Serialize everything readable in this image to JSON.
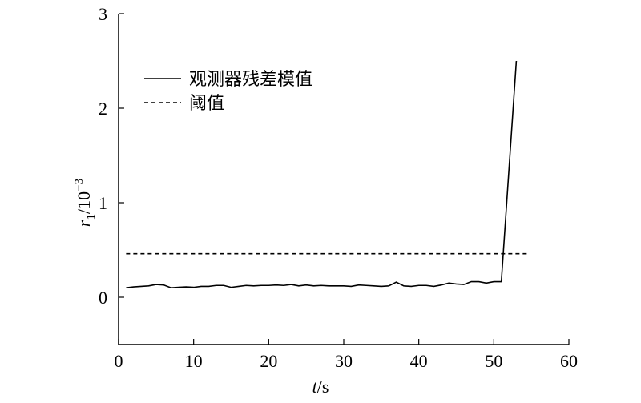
{
  "chart_data": {
    "type": "line",
    "xlabel": {
      "var": "t",
      "unit": "/s"
    },
    "ylabel": {
      "var": "r",
      "sub": "1",
      "rest": "/10",
      "sup": "−3"
    },
    "xlim": [
      0,
      60
    ],
    "xticks": [
      0,
      10,
      20,
      30,
      40,
      50,
      60
    ],
    "ylim": [
      -0.5,
      3
    ],
    "yticks": [
      0,
      1,
      2,
      3
    ],
    "legend": "upper left",
    "series": [
      {
        "name": "观测器残差模值",
        "color": "#000000",
        "dash": "solid",
        "x": [
          1,
          2,
          3,
          4,
          5,
          6,
          7,
          8,
          9,
          10,
          11,
          12,
          13,
          14,
          15,
          16,
          17,
          18,
          19,
          20,
          21,
          22,
          23,
          24,
          25,
          26,
          27,
          28,
          29,
          30,
          31,
          32,
          33,
          34,
          35,
          36,
          37,
          38,
          39,
          40,
          41,
          42,
          43,
          44,
          45,
          46,
          47,
          48,
          49,
          50,
          51,
          53
        ],
        "values": [
          0.1,
          0.11,
          0.115,
          0.12,
          0.135,
          0.13,
          0.1,
          0.105,
          0.11,
          0.105,
          0.115,
          0.115,
          0.125,
          0.125,
          0.105,
          0.115,
          0.125,
          0.12,
          0.125,
          0.125,
          0.13,
          0.125,
          0.135,
          0.12,
          0.13,
          0.12,
          0.125,
          0.12,
          0.12,
          0.12,
          0.115,
          0.13,
          0.125,
          0.12,
          0.115,
          0.12,
          0.16,
          0.12,
          0.115,
          0.125,
          0.125,
          0.115,
          0.13,
          0.15,
          0.14,
          0.135,
          0.165,
          0.165,
          0.15,
          0.165,
          0.165,
          2.5
        ]
      },
      {
        "name": "阈值",
        "color": "#000000",
        "dash": "dashed",
        "x": [
          1,
          54.5
        ],
        "values": [
          0.46,
          0.46
        ]
      }
    ]
  }
}
